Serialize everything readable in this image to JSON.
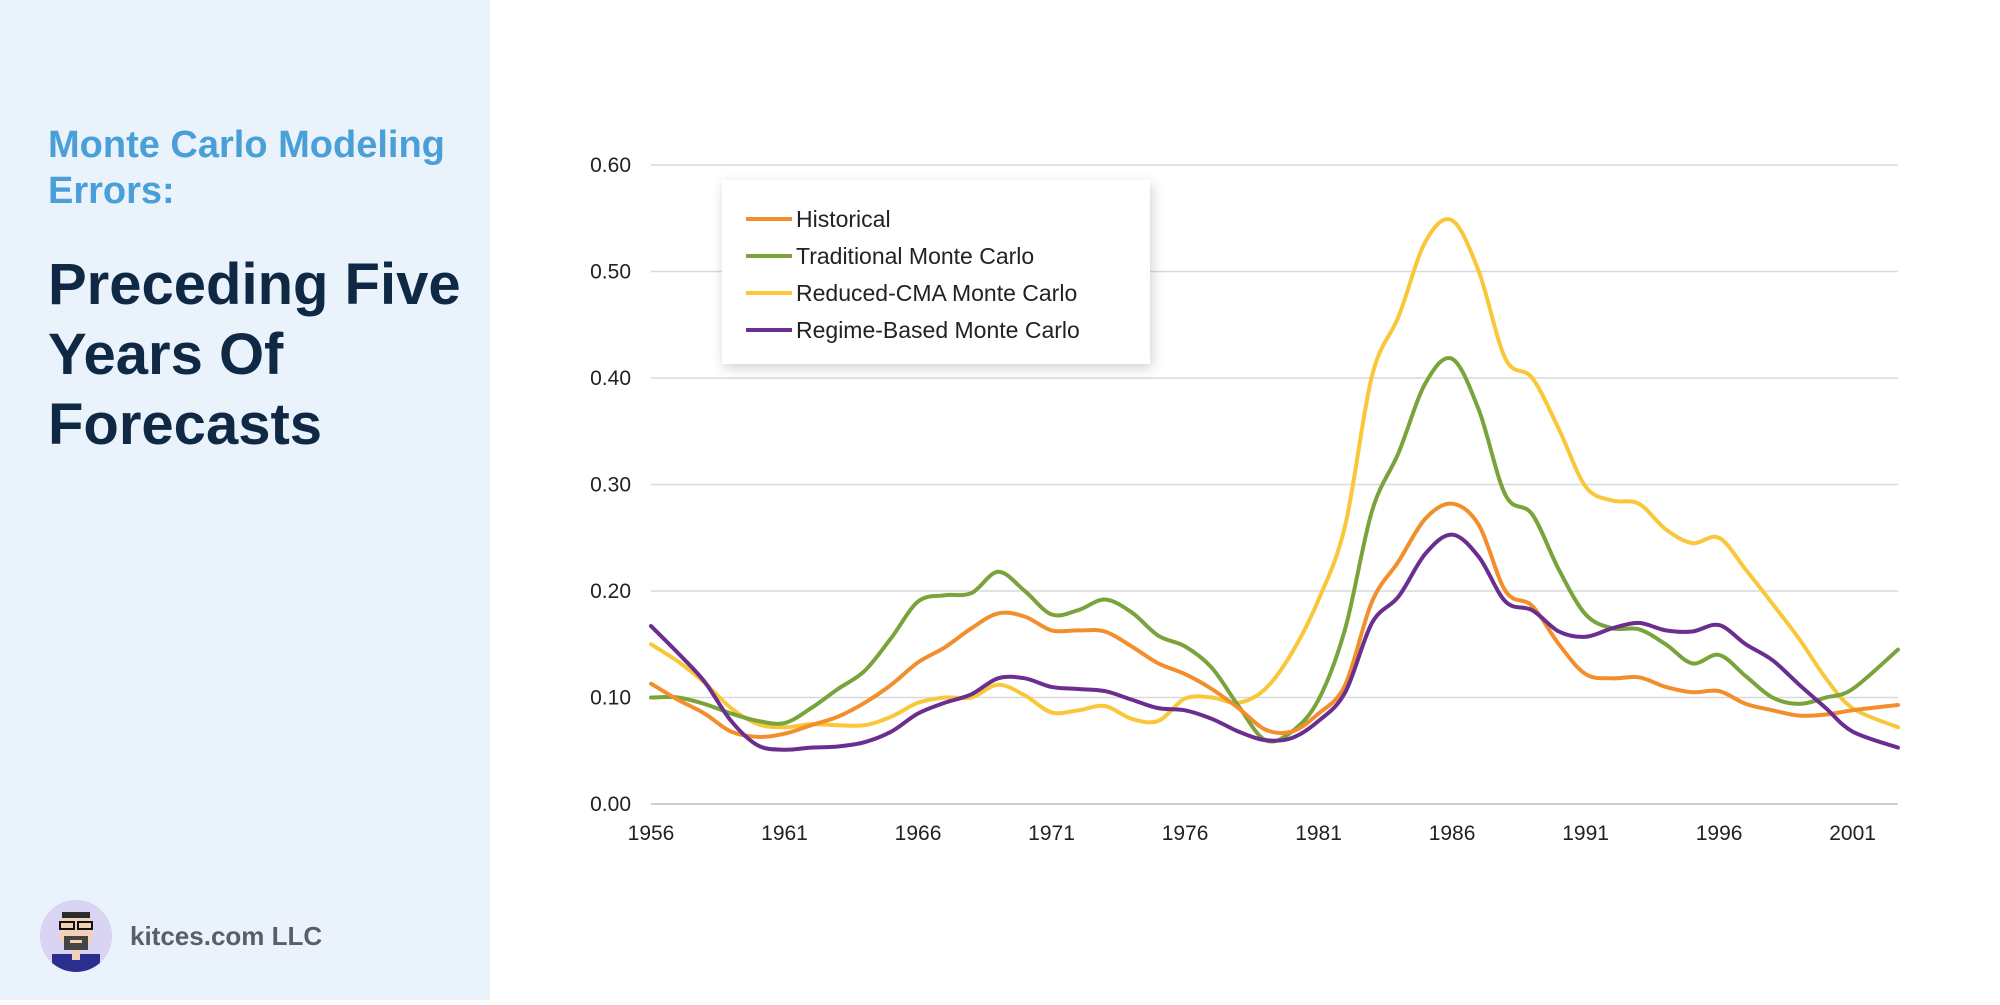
{
  "sidebar": {
    "subtitle": "Monte Carlo Modeling Errors:",
    "title": "Preceding Five Years Of Forecasts",
    "brand": "kitces.com LLC",
    "avatar_icon": "avatar-icon"
  },
  "colors": {
    "sidebar_bg": "#eaf2fb",
    "subtitle": "#4a9fd8",
    "title": "#0f2944"
  },
  "chart_data": {
    "type": "line",
    "title": "",
    "xlabel": "",
    "ylabel": "",
    "xlim": [
      1956,
      2002.7
    ],
    "ylim": [
      0,
      0.6
    ],
    "yticks": [
      "0.00",
      "0.10",
      "0.20",
      "0.30",
      "0.40",
      "0.50",
      "0.60"
    ],
    "xticks": [
      "1956",
      "1961",
      "1966",
      "1971",
      "1976",
      "1981",
      "1986",
      "1991",
      "1996",
      "2001"
    ],
    "grid": true,
    "legend_position": "top-left",
    "x": [
      1956,
      1957,
      1958,
      1959,
      1960,
      1961,
      1962,
      1963,
      1964,
      1965,
      1966,
      1967,
      1968,
      1969,
      1970,
      1971,
      1972,
      1973,
      1974,
      1975,
      1976,
      1977,
      1978,
      1979,
      1980,
      1981,
      1982,
      1983,
      1984,
      1985,
      1986,
      1987,
      1988,
      1989,
      1990,
      1991,
      1992,
      1993,
      1994,
      1995,
      1996,
      1997,
      1998,
      1999,
      2000,
      2001,
      2002.7
    ],
    "series": [
      {
        "name": "Historical",
        "color": "#f28e2b",
        "values": [
          0.113,
          0.098,
          0.085,
          0.068,
          0.063,
          0.066,
          0.074,
          0.082,
          0.095,
          0.112,
          0.133,
          0.147,
          0.165,
          0.179,
          0.176,
          0.163,
          0.163,
          0.162,
          0.148,
          0.132,
          0.122,
          0.108,
          0.09,
          0.07,
          0.068,
          0.085,
          0.112,
          0.19,
          0.228,
          0.268,
          0.282,
          0.262,
          0.2,
          0.186,
          0.15,
          0.122,
          0.118,
          0.119,
          0.11,
          0.105,
          0.106,
          0.094,
          0.088,
          0.083,
          0.084,
          0.088,
          0.093
        ]
      },
      {
        "name": "Traditional Monte Carlo",
        "color": "#7aa33b",
        "values": [
          0.1,
          0.1,
          0.094,
          0.085,
          0.078,
          0.076,
          0.09,
          0.108,
          0.125,
          0.156,
          0.19,
          0.196,
          0.198,
          0.218,
          0.2,
          0.178,
          0.182,
          0.192,
          0.18,
          0.158,
          0.148,
          0.128,
          0.092,
          0.06,
          0.068,
          0.098,
          0.165,
          0.275,
          0.33,
          0.395,
          0.418,
          0.37,
          0.29,
          0.272,
          0.22,
          0.178,
          0.165,
          0.164,
          0.15,
          0.132,
          0.14,
          0.12,
          0.1,
          0.094,
          0.1,
          0.108,
          0.145
        ]
      },
      {
        "name": "Reduced-CMA Monte Carlo",
        "color": "#f9c73a",
        "values": [
          0.15,
          0.134,
          0.114,
          0.09,
          0.075,
          0.072,
          0.075,
          0.074,
          0.074,
          0.082,
          0.095,
          0.1,
          0.1,
          0.112,
          0.102,
          0.086,
          0.088,
          0.092,
          0.08,
          0.078,
          0.099,
          0.1,
          0.095,
          0.108,
          0.142,
          0.192,
          0.262,
          0.402,
          0.458,
          0.528,
          0.548,
          0.5,
          0.418,
          0.4,
          0.352,
          0.298,
          0.285,
          0.282,
          0.258,
          0.245,
          0.25,
          0.22,
          0.188,
          0.155,
          0.118,
          0.09,
          0.072
        ]
      },
      {
        "name": "Regime-Based Monte Carlo",
        "color": "#6a2e8e",
        "values": [
          0.167,
          0.142,
          0.115,
          0.078,
          0.055,
          0.051,
          0.053,
          0.054,
          0.058,
          0.068,
          0.085,
          0.095,
          0.103,
          0.118,
          0.118,
          0.11,
          0.108,
          0.106,
          0.098,
          0.09,
          0.088,
          0.08,
          0.068,
          0.06,
          0.062,
          0.078,
          0.105,
          0.17,
          0.195,
          0.235,
          0.253,
          0.232,
          0.19,
          0.182,
          0.162,
          0.157,
          0.165,
          0.17,
          0.163,
          0.162,
          0.168,
          0.15,
          0.135,
          0.112,
          0.09,
          0.068,
          0.053
        ]
      }
    ]
  }
}
